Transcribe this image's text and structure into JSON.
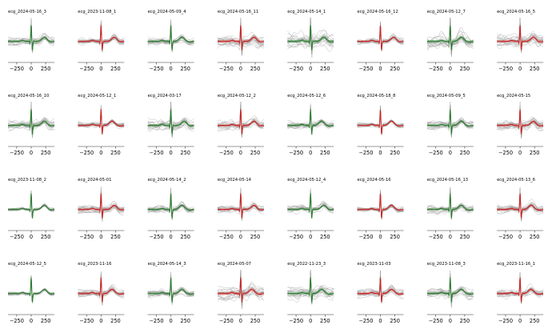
{
  "figure": {
    "xticks": [
      -250,
      0,
      250
    ],
    "xlim": [
      -400,
      400
    ],
    "ylim": [
      -1.0,
      1.0
    ],
    "colors": {
      "green": "#2e7d32",
      "red": "#c62828",
      "gray": "#9e9e9e",
      "axis": "#333333"
    }
  },
  "chart_data": [
    {
      "type": "line",
      "title": "ecg_2024-05-16_3",
      "color": "green",
      "spread": 0.35,
      "tshape": "late"
    },
    {
      "type": "line",
      "title": "ecg_2023-11-08_1",
      "color": "red",
      "spread": 0.25,
      "tshape": "late"
    },
    {
      "type": "line",
      "title": "ecg_2024-05-09_4",
      "color": "green",
      "spread": 0.3,
      "tshape": "mid"
    },
    {
      "type": "line",
      "title": "ecg_2024-05-16_11",
      "color": "red",
      "spread": 0.55,
      "tshape": "late"
    },
    {
      "type": "line",
      "title": "ecg_2024-05-14_1",
      "color": "green",
      "spread": 0.7,
      "tshape": "late"
    },
    {
      "type": "line",
      "title": "ecg_2024-05-16_12",
      "color": "red",
      "spread": 0.25,
      "tshape": "late"
    },
    {
      "type": "line",
      "title": "ecg_2024-05-12_7",
      "color": "green",
      "spread": 0.65,
      "tshape": "mid"
    },
    {
      "type": "line",
      "title": "ecg_2024-05-16_5",
      "color": "red",
      "spread": 0.55,
      "tshape": "late"
    },
    {
      "type": "line",
      "title": "ecg_2024-05-16_10",
      "color": "green",
      "spread": 0.4,
      "tshape": "late"
    },
    {
      "type": "line",
      "title": "ecg_2024-05-12_1",
      "color": "red",
      "spread": 0.25,
      "tshape": "mid"
    },
    {
      "type": "line",
      "title": "ecg_2024-03-17",
      "color": "green",
      "spread": 0.5,
      "tshape": "late"
    },
    {
      "type": "line",
      "title": "ecg_2024-05-12_2",
      "color": "red",
      "spread": 0.4,
      "tshape": "late"
    },
    {
      "type": "line",
      "title": "ecg_2024-05-12_6",
      "color": "green",
      "spread": 0.35,
      "tshape": "mid"
    },
    {
      "type": "line",
      "title": "ecg_2024-05-18_8",
      "color": "red",
      "spread": 0.2,
      "tshape": "mid"
    },
    {
      "type": "line",
      "title": "ecg_2024-05-09_5",
      "color": "green",
      "spread": 0.35,
      "tshape": "mid"
    },
    {
      "type": "line",
      "title": "ecg_2024-05-15",
      "color": "red",
      "spread": 0.45,
      "tshape": "late"
    },
    {
      "type": "line",
      "title": "ecg_2023-11-08_2",
      "color": "green",
      "spread": 0.15,
      "tshape": "late"
    },
    {
      "type": "line",
      "title": "ecg_2024-05-01",
      "color": "red",
      "spread": 0.35,
      "tshape": "late"
    },
    {
      "type": "line",
      "title": "ecg_2024-05-14_2",
      "color": "green",
      "spread": 0.3,
      "tshape": "mid"
    },
    {
      "type": "line",
      "title": "ecg_2024-05-14",
      "color": "red",
      "spread": 0.3,
      "tshape": "late"
    },
    {
      "type": "line",
      "title": "ecg_2024-05-12_4",
      "color": "green",
      "spread": 0.3,
      "tshape": "late"
    },
    {
      "type": "line",
      "title": "ecg_2024-05-16",
      "color": "red",
      "spread": 0.2,
      "tshape": "mid"
    },
    {
      "type": "line",
      "title": "ecg_2024-05-16_13",
      "color": "green",
      "spread": 0.35,
      "tshape": "mid"
    },
    {
      "type": "line",
      "title": "ecg_2024-05-13_6",
      "color": "red",
      "spread": 0.4,
      "tshape": "mid"
    },
    {
      "type": "line",
      "title": "ecg_2024-05-12_5",
      "color": "green",
      "spread": 0.15,
      "tshape": "late"
    },
    {
      "type": "line",
      "title": "ecg_2023-11-16",
      "color": "red",
      "spread": 0.35,
      "tshape": "mid"
    },
    {
      "type": "line",
      "title": "ecg_2024-05-14_3",
      "color": "green",
      "spread": 0.3,
      "tshape": "mid"
    },
    {
      "type": "line",
      "title": "ecg_2024-05-07",
      "color": "red",
      "spread": 0.6,
      "tshape": "mid"
    },
    {
      "type": "line",
      "title": "ecg_2022-11-23_3",
      "color": "green",
      "spread": 0.55,
      "tshape": "mid"
    },
    {
      "type": "line",
      "title": "ecg_2023-11-03",
      "color": "red",
      "spread": 0.4,
      "tshape": "mid"
    },
    {
      "type": "line",
      "title": "ecg_2023-11-08_3",
      "color": "green",
      "spread": 0.45,
      "tshape": "mid"
    },
    {
      "type": "line",
      "title": "ecg_2023-11-16_1",
      "color": "red",
      "spread": 0.35,
      "tshape": "mid"
    }
  ]
}
